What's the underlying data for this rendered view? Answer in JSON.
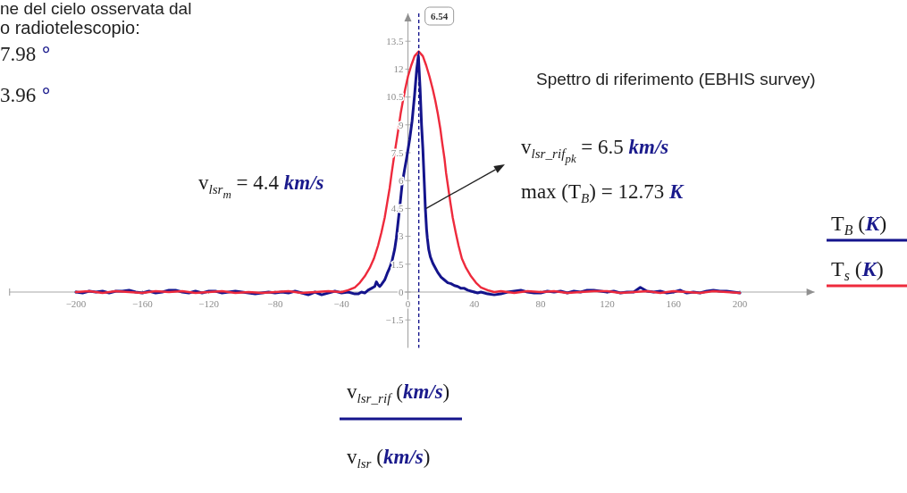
{
  "chart_data": {
    "type": "line",
    "title": "Spettro di riferimento (EBHIS survey)",
    "xlabel": "v$_{lsr_rif}$ (km/s)\nv$_{lsr}$ (km/s)",
    "xlim": [
      -240,
      245
    ],
    "ylim": [
      -3,
      15
    ],
    "xticks": [
      -200,
      -160,
      -120,
      -80,
      -40,
      0,
      40,
      80,
      120,
      160,
      200
    ],
    "yticks": [
      -1.5,
      0,
      1.5,
      3,
      4.5,
      6,
      7.5,
      9,
      10.5,
      12,
      13.5
    ],
    "legend": "right",
    "series": [
      {
        "name": "T$_{B}$ (K)",
        "color": "#14148c",
        "x": [
          -200,
          -196,
          -192,
          -188,
          -184,
          -180,
          -176,
          -172,
          -168,
          -164,
          -160,
          -156,
          -152,
          -148,
          -144,
          -140,
          -136,
          -132,
          -128,
          -124,
          -120,
          -116,
          -112,
          -108,
          -104,
          -100,
          -96,
          -92,
          -88,
          -84,
          -80,
          -76,
          -72,
          -68,
          -64,
          -60,
          -56,
          -52,
          -48,
          -44,
          -40,
          -36,
          -32,
          -30,
          -28,
          -26,
          -24,
          -22,
          -20,
          -19,
          -18,
          -17,
          -16,
          -14,
          -12.5,
          -11,
          -9.5,
          -8,
          -7,
          -6,
          -5,
          -3.5,
          -2,
          -0.8,
          1,
          2.5,
          4,
          5.3,
          6.3,
          7.3,
          8.2,
          9,
          9.8,
          10.5,
          11.2,
          11.7,
          12.5,
          13.5,
          15,
          16.5,
          18,
          20,
          22,
          24,
          26,
          28,
          30,
          32,
          34,
          36,
          38,
          40,
          42,
          44,
          46,
          48,
          52,
          56,
          60,
          64,
          68,
          72,
          76,
          80,
          84,
          88,
          92,
          96,
          100,
          104,
          108,
          112,
          116,
          120,
          124,
          128,
          132,
          136,
          140,
          144,
          148,
          152,
          156,
          160,
          164,
          168,
          172,
          176,
          180,
          184,
          188,
          192,
          196,
          200
        ],
        "values": [
          0,
          -0.05,
          0.05,
          0,
          0.05,
          -0.05,
          0.05,
          0.05,
          0.1,
          0,
          -0.05,
          0.05,
          -0.05,
          0,
          0.1,
          0.1,
          0,
          -0.05,
          0.05,
          -0.05,
          0.05,
          0.05,
          -0.05,
          0,
          0.05,
          0,
          -0.05,
          -0.1,
          -0.05,
          0,
          -0.05,
          0,
          -0.05,
          0.05,
          -0.05,
          -0.15,
          0,
          -0.15,
          -0.05,
          0.05,
          -0.05,
          0,
          -0.1,
          -0.1,
          0,
          -0.05,
          0.1,
          0.2,
          0.3,
          0.55,
          0.4,
          0.3,
          0.4,
          0.65,
          1,
          1.3,
          1.7,
          2.3,
          2.9,
          3.7,
          4.5,
          5.8,
          6.6,
          7.2,
          8.2,
          9.2,
          10.6,
          12,
          12.73,
          11,
          9,
          7.7,
          6,
          4.5,
          3.4,
          2.9,
          2.3,
          1.9,
          1.55,
          1.3,
          1.05,
          0.8,
          0.65,
          0.5,
          0.45,
          0.35,
          0.3,
          0.2,
          0.2,
          0.1,
          0.05,
          0,
          -0.05,
          0,
          -0.05,
          -0.1,
          -0.15,
          -0.1,
          0,
          0.05,
          0.1,
          0,
          -0.05,
          -0.05,
          0.05,
          0,
          0.05,
          -0.05,
          0.05,
          0,
          0.1,
          0.1,
          0.05,
          0,
          0.05,
          -0.05,
          0,
          0,
          0.25,
          0.05,
          0,
          0.05,
          -0.05,
          0,
          0.1,
          -0.05,
          0,
          -0.05,
          0.05,
          0.1,
          0.05,
          0.05,
          0,
          -0.05
        ]
      },
      {
        "name": "T$_{s}$ (K)",
        "color": "#ee2a3c",
        "x": [
          -200,
          -192,
          -184,
          -176,
          -168,
          -160,
          -152,
          -144,
          -136,
          -128,
          -120,
          -112,
          -104,
          -96,
          -88,
          -80,
          -72,
          -64,
          -56,
          -48,
          -40,
          -36,
          -32,
          -29,
          -26,
          -23,
          -20.5,
          -18,
          -16,
          -14,
          -12.5,
          -11,
          -9.8,
          -8.5,
          -7.1,
          -5.7,
          -4.4,
          -3,
          -1.7,
          0,
          2,
          4,
          6.5,
          9,
          11,
          13,
          15,
          16.5,
          18,
          19.5,
          20.7,
          22,
          23,
          24.3,
          25.6,
          27,
          28.8,
          30.5,
          32.5,
          35,
          38,
          41,
          44,
          48,
          52,
          56,
          64,
          72,
          80,
          88,
          96,
          104,
          112,
          120,
          128,
          136,
          144,
          152,
          160,
          168,
          176,
          184,
          192,
          200
        ],
        "values": [
          0,
          0.05,
          -0.05,
          0.05,
          0,
          -0.05,
          0.05,
          0,
          0.05,
          -0.05,
          0,
          0.05,
          -0.05,
          0,
          -0.05,
          0,
          0.05,
          -0.05,
          0,
          0.05,
          0,
          0.1,
          0.25,
          0.5,
          0.85,
          1.3,
          1.8,
          2.5,
          3.2,
          4,
          4.8,
          5.6,
          6.4,
          7.2,
          8,
          8.8,
          9.6,
          10.3,
          10.9,
          11.6,
          12.2,
          12.7,
          12.95,
          12.7,
          12.2,
          11.6,
          10.9,
          10.3,
          9.6,
          8.8,
          8,
          7.2,
          6.4,
          5.6,
          4.8,
          4,
          3.2,
          2.5,
          1.8,
          1.3,
          0.85,
          0.5,
          0.25,
          0.1,
          0,
          0.05,
          -0.05,
          0.05,
          0,
          0.05,
          -0.05,
          0,
          0.05,
          0.05,
          -0.05,
          0,
          0.05,
          -0.05,
          0.05,
          0,
          -0.05,
          0.05,
          0,
          -0.05
        ]
      }
    ],
    "ref_lines": [
      {
        "axis": "x",
        "value": 6.54,
        "label": "6.54",
        "color": "#14148c",
        "line_style": "dashed"
      }
    ],
    "annotations": [
      "ne del cielo osservata dal",
      "o radiotelescopio:",
      "7.98 °",
      "3.96 °",
      "v$_{lsr}$$_{m}$ = 4.4 km/s",
      {
        "text": "v$_{lsr_rif}$$_{pk}$ = 6.5 km/s",
        "x": 11,
        "y": 4.5
      },
      "max (T$_{B}$) = 12.73 K"
    ]
  }
}
